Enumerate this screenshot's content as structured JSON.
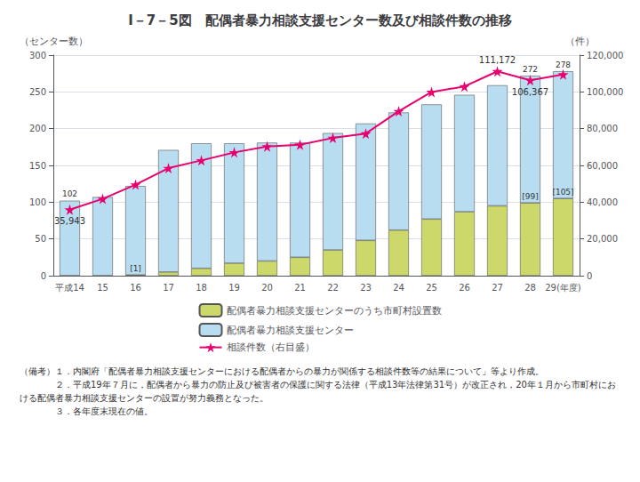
{
  "chart_data": {
    "type": "bar",
    "title": "I－7－5図　配偶者暴力相談支援センター数及び相談件数の推移",
    "categories": [
      "平成14",
      "15",
      "16",
      "17",
      "18",
      "19",
      "20",
      "21",
      "22",
      "23",
      "24",
      "25",
      "26",
      "27",
      "28",
      "29(年度)"
    ],
    "series": [
      {
        "name": "配偶者暴力相談支援センターのうち市町村設置数",
        "type": "bar",
        "color": "#ccd96a",
        "values": [
          0,
          0,
          1,
          5,
          10,
          17,
          20,
          25,
          35,
          48,
          62,
          77,
          87,
          95,
          99,
          105
        ]
      },
      {
        "name": "配偶者暴力相談支援センター",
        "type": "bar",
        "color": "#b8ddf0",
        "values": [
          102,
          107,
          121,
          166,
          170,
          163,
          161,
          156,
          159,
          159,
          160,
          156,
          159,
          164,
          173,
          173
        ]
      },
      {
        "name": "相談件数（右目盛）",
        "type": "line",
        "color": "#e8006e",
        "marker": "star",
        "axis": "y2",
        "values": [
          35943,
          41809,
          49560,
          58528,
          62730,
          67082,
          70279,
          71279,
          74948,
          77334,
          89490,
          99961,
          102963,
          111172,
          106367,
          109523
        ]
      }
    ],
    "stacked": true,
    "ylabel": "（センター数）",
    "y2label": "（件）",
    "ylim": [
      0,
      300
    ],
    "yticks": [
      0,
      50,
      100,
      150,
      200,
      250,
      300
    ],
    "y2lim": [
      0,
      120000
    ],
    "y2ticks": [
      0,
      {
        "value": 20000,
        "label": "20,000"
      },
      {
        "value": 40000,
        "label": "40,000"
      },
      {
        "value": 60000,
        "label": "60,000"
      },
      {
        "value": 80000,
        "label": "80,000"
      },
      {
        "value": 100000,
        "label": "100,000"
      },
      {
        "value": 120000,
        "label": "120,000"
      }
    ],
    "grid": true,
    "legend": "bottom",
    "annotations": [
      {
        "text": "35,943",
        "x": "平成14",
        "y": 35943,
        "axis": "y2"
      },
      {
        "text": "111,172",
        "x": "27",
        "y": 111172,
        "axis": "y2"
      },
      {
        "text": "106,367",
        "x": "28",
        "y": 106367,
        "axis": "y2"
      },
      {
        "text": "102",
        "x": "平成14",
        "y": 102
      },
      {
        "text": "272",
        "x": "28",
        "y": 272
      },
      {
        "text": "278",
        "x": "29(年度)",
        "y": 278
      },
      {
        "text": "[1]",
        "x": "16",
        "y": 1
      },
      {
        "text": "[99]",
        "x": "28",
        "y": 99
      },
      {
        "text": "[105]",
        "x": "29(年度)",
        "y": 105
      }
    ],
    "notes": [
      "（備考）１．内閣府「配偶者暴力相談支援センターにおける配偶者からの暴力が関係する相談件数等の結果について」等より作成。",
      "　　　　２．平成19年７月に，配偶者から暴力の防止及び被害者の保護に関する法律（平成13年法律第31号）が改正され，20年１月から市町村における配偶者暴力相談支援センターの設置が努力義務となった。",
      "　　　　３．各年度末現在の値。"
    ]
  }
}
